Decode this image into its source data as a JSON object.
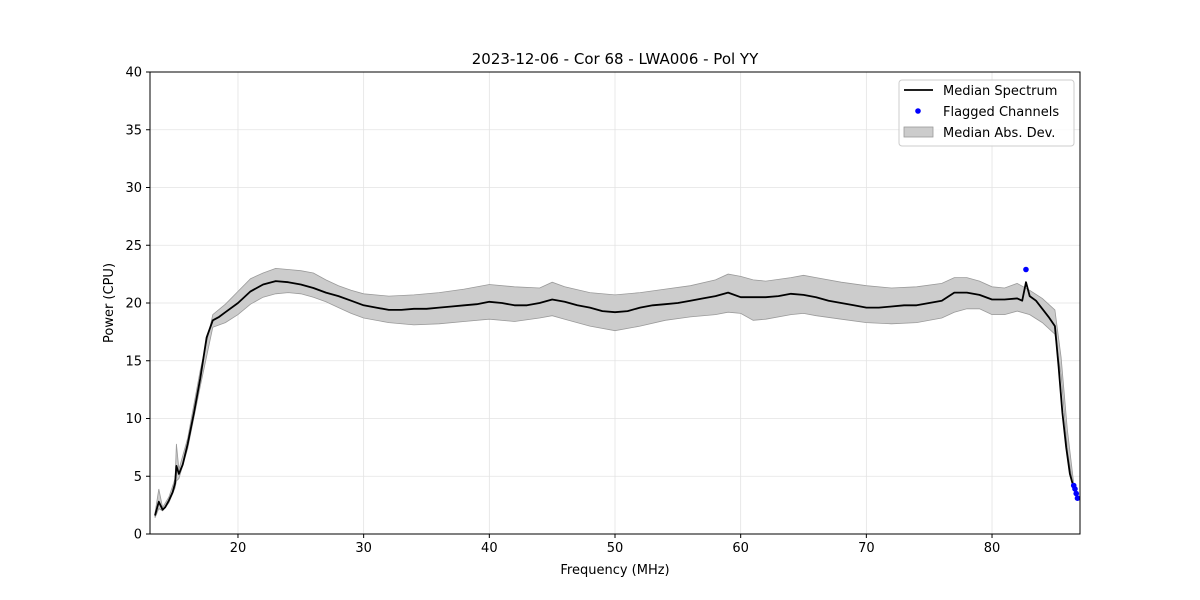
{
  "chart_data": {
    "type": "line",
    "title": "2023-12-06 - Cor 68 - LWA006 - Pol YY",
    "xlabel": "Frequency (MHz)",
    "ylabel": "Power (CPU)",
    "xlim": [
      13,
      87
    ],
    "ylim": [
      0,
      40
    ],
    "xticks": [
      20,
      30,
      40,
      50,
      60,
      70,
      80
    ],
    "yticks": [
      0,
      5,
      10,
      15,
      20,
      25,
      30,
      35,
      40
    ],
    "grid": true,
    "legend_position": "top-right",
    "colors": {
      "median": "#000000",
      "flagged": "#0000ff",
      "band": "#cccccc",
      "band_edge": "#9a9a9a"
    },
    "series": [
      {
        "name": "Median Spectrum",
        "kind": "line",
        "x": [
          13.4,
          13.7,
          14.0,
          14.2,
          14.5,
          14.8,
          15.0,
          15.1,
          15.3,
          15.6,
          16.0,
          16.5,
          17.0,
          17.5,
          18.0,
          18.5,
          19.0,
          20.0,
          21.0,
          22.0,
          23.0,
          24.0,
          25.0,
          26.0,
          27.0,
          28.0,
          29.0,
          30.0,
          31.0,
          32.0,
          33.0,
          34.0,
          35.0,
          36.0,
          37.0,
          38.0,
          39.0,
          40.0,
          41.0,
          42.0,
          43.0,
          44.0,
          45.0,
          46.0,
          47.0,
          48.0,
          49.0,
          50.0,
          51.0,
          52.0,
          53.0,
          54.0,
          55.0,
          56.0,
          57.0,
          58.0,
          59.0,
          60.0,
          61.0,
          62.0,
          63.0,
          64.0,
          65.0,
          66.0,
          67.0,
          68.0,
          69.0,
          70.0,
          71.0,
          72.0,
          73.0,
          74.0,
          75.0,
          76.0,
          77.0,
          78.0,
          79.0,
          80.0,
          81.0,
          82.0,
          82.4,
          82.7,
          83.0,
          83.5,
          84.0,
          84.5,
          85.0,
          85.3,
          85.6,
          85.9,
          86.2,
          86.5,
          86.8
        ],
        "y": [
          1.6,
          2.8,
          2.1,
          2.3,
          2.9,
          3.6,
          4.4,
          5.9,
          5.2,
          6.0,
          7.8,
          10.5,
          13.5,
          17.0,
          18.5,
          18.8,
          19.2,
          20.0,
          21.0,
          21.6,
          21.9,
          21.8,
          21.6,
          21.3,
          20.9,
          20.6,
          20.2,
          19.8,
          19.6,
          19.4,
          19.4,
          19.5,
          19.5,
          19.6,
          19.7,
          19.8,
          19.9,
          20.1,
          20.0,
          19.8,
          19.8,
          20.0,
          20.3,
          20.1,
          19.8,
          19.6,
          19.3,
          19.2,
          19.3,
          19.6,
          19.8,
          19.9,
          20.0,
          20.2,
          20.4,
          20.6,
          20.9,
          20.5,
          20.5,
          20.5,
          20.6,
          20.8,
          20.7,
          20.5,
          20.2,
          20.0,
          19.8,
          19.6,
          19.6,
          19.7,
          19.8,
          19.8,
          20.0,
          20.2,
          20.9,
          20.9,
          20.7,
          20.3,
          20.3,
          20.4,
          20.2,
          21.8,
          20.6,
          20.2,
          19.5,
          18.8,
          18.0,
          14.5,
          10.5,
          7.5,
          5.2,
          4.0,
          3.2
        ]
      },
      {
        "name": "Flagged Channels",
        "kind": "scatter",
        "x": [
          82.7,
          86.5,
          86.6,
          86.7,
          86.8
        ],
        "y": [
          22.9,
          4.2,
          3.9,
          3.5,
          3.1
        ]
      },
      {
        "name": "Median Abs. Dev.",
        "kind": "band",
        "x": [
          13.4,
          13.7,
          14.0,
          14.5,
          15.0,
          15.1,
          15.3,
          16.0,
          17.0,
          18.0,
          19.0,
          20.0,
          21.0,
          22.0,
          23.0,
          24.0,
          25.0,
          26.0,
          27.0,
          28.0,
          29.0,
          30.0,
          32.0,
          34.0,
          36.0,
          38.0,
          40.0,
          42.0,
          44.0,
          45.0,
          46.0,
          48.0,
          50.0,
          52.0,
          54.0,
          56.0,
          58.0,
          59.0,
          60.0,
          61.0,
          62.0,
          64.0,
          65.0,
          66.0,
          68.0,
          70.0,
          72.0,
          74.0,
          76.0,
          77.0,
          78.0,
          79.0,
          80.0,
          81.0,
          82.0,
          83.0,
          84.0,
          85.0,
          85.5,
          86.0,
          86.5,
          86.8
        ],
        "lower": [
          1.4,
          2.2,
          2.0,
          2.7,
          4.0,
          4.6,
          4.8,
          7.4,
          12.8,
          17.9,
          18.3,
          19.0,
          19.9,
          20.5,
          20.8,
          20.9,
          20.8,
          20.5,
          20.1,
          19.6,
          19.1,
          18.7,
          18.3,
          18.1,
          18.2,
          18.4,
          18.6,
          18.4,
          18.7,
          18.9,
          18.6,
          18.0,
          17.6,
          18.0,
          18.5,
          18.8,
          19.0,
          19.2,
          19.1,
          18.5,
          18.6,
          19.0,
          19.1,
          18.9,
          18.6,
          18.3,
          18.2,
          18.3,
          18.7,
          19.2,
          19.5,
          19.5,
          19.0,
          19.0,
          19.3,
          19.0,
          18.3,
          17.3,
          13.7,
          7.2,
          3.9,
          3.0
        ],
        "upper": [
          1.8,
          3.9,
          2.3,
          3.2,
          4.8,
          7.8,
          5.6,
          8.3,
          14.2,
          19.0,
          19.9,
          21.0,
          22.1,
          22.6,
          23.0,
          22.9,
          22.8,
          22.6,
          22.0,
          21.5,
          21.1,
          20.8,
          20.6,
          20.7,
          20.9,
          21.2,
          21.6,
          21.4,
          21.3,
          21.8,
          21.4,
          20.9,
          20.7,
          20.9,
          21.2,
          21.5,
          22.0,
          22.5,
          22.3,
          22.0,
          21.9,
          22.2,
          22.4,
          22.2,
          21.8,
          21.5,
          21.3,
          21.4,
          21.7,
          22.2,
          22.2,
          21.9,
          21.4,
          21.3,
          21.7,
          21.1,
          20.4,
          19.4,
          15.3,
          9.0,
          4.4,
          3.3
        ]
      }
    ]
  }
}
